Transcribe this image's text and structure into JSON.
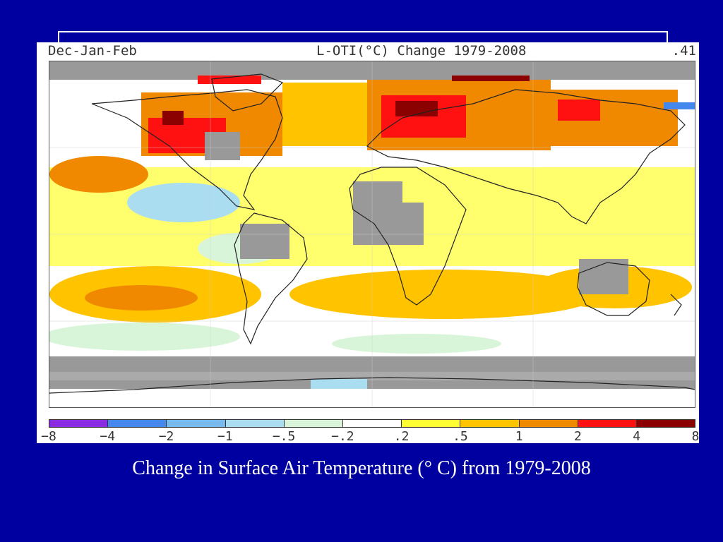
{
  "header": {
    "season": "Dec-Jan-Feb",
    "title": "L-OTI(°C) Change 1979-2008",
    "global_mean": ".41"
  },
  "map": {
    "projection": "equirectangular",
    "coastline_color": "#222222",
    "missing_data_color": "#999999"
  },
  "legend": {
    "tick_labels": [
      "-8",
      "-4",
      "-2",
      "-1",
      "-.5",
      "-.2",
      ".2",
      ".5",
      "1",
      "2",
      "4",
      "8"
    ],
    "colors": [
      "#8a2be2",
      "#4488ee",
      "#77bbee",
      "#aaddf0",
      "#d9f5d9",
      "#ffffff",
      "#ffff33",
      "#ffc300",
      "#f08800",
      "#ff1111",
      "#8b0000"
    ]
  },
  "caption": "Change in Surface Air Temperature (° C) from 1979-2008"
}
